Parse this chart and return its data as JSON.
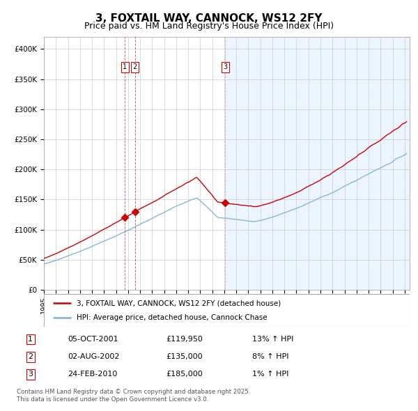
{
  "title": "3, FOXTAIL WAY, CANNOCK, WS12 2FY",
  "subtitle": "Price paid vs. HM Land Registry's House Price Index (HPI)",
  "legend_line1": "3, FOXTAIL WAY, CANNOCK, WS12 2FY (detached house)",
  "legend_line2": "HPI: Average price, detached house, Cannock Chase",
  "sale1_date": "05-OCT-2001",
  "sale1_price": 119950,
  "sale1_hpi": "13% ↑ HPI",
  "sale2_date": "02-AUG-2002",
  "sale2_price": 135000,
  "sale2_hpi": "8% ↑ HPI",
  "sale3_date": "24-FEB-2010",
  "sale3_price": 185000,
  "sale3_hpi": "1% ↑ HPI",
  "footnote1": "Contains HM Land Registry data © Crown copyright and database right 2025.",
  "footnote2": "This data is licensed under the Open Government Licence v3.0.",
  "red_line_color": "#cc0000",
  "blue_line_color": "#7aafd4",
  "bg_shade_color": "#ddeeff",
  "grid_color": "#cccccc",
  "background_color": "#ffffff",
  "ylim": [
    0,
    420000
  ],
  "yticks": [
    0,
    50000,
    100000,
    150000,
    200000,
    250000,
    300000,
    350000,
    400000
  ],
  "ytick_labels": [
    "£0",
    "£50K",
    "£100K",
    "£150K",
    "£200K",
    "£250K",
    "£300K",
    "£350K",
    "£400K"
  ]
}
